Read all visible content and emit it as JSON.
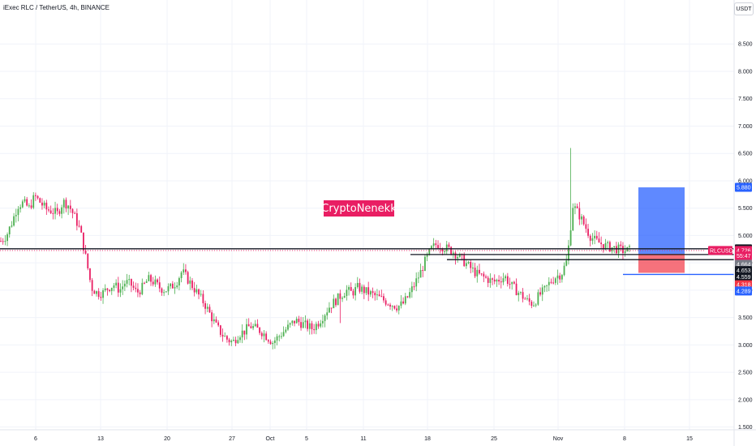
{
  "header": {
    "symbol_title": "iExec RLC / TetherUS, 4h, BINANCE",
    "currency_button": "USDT"
  },
  "watermark": {
    "text": "CryptoNenekk",
    "color": "#e91e63"
  },
  "colors": {
    "up": "#26a69a",
    "up_bright": "#4caf50",
    "down": "#ef5350",
    "down_pink": "#e91e63",
    "grid": "#f0f3fa",
    "axis_text": "#131722",
    "target_zone": "#2962ff",
    "stop_zone": "#f23645",
    "blue_line": "#2962ff"
  },
  "chart_data": {
    "type": "candlestick",
    "symbol": "RLCUSDT",
    "timeframe": "4h",
    "exchange": "BINANCE",
    "price_axis": {
      "ylim": [
        1.45,
        8.8
      ],
      "ticks": [
        "8.500",
        "8.000",
        "7.500",
        "7.000",
        "6.500",
        "6.000",
        "5.500",
        "5.000",
        "4.500",
        "4.000",
        "3.500",
        "3.000",
        "2.500",
        "2.000",
        "1.500"
      ]
    },
    "time_axis": {
      "labels": [
        "6",
        "13",
        "20",
        "27",
        "Oct",
        "5",
        "11",
        "18",
        "25",
        "Nov",
        "8",
        "15"
      ]
    },
    "grid": true,
    "price_series_close": [
      [
        0,
        4.9
      ],
      [
        1,
        5.0
      ],
      [
        2,
        5.25
      ],
      [
        3,
        5.55
      ],
      [
        4,
        5.6
      ],
      [
        5,
        5.5
      ],
      [
        6,
        5.72
      ],
      [
        7,
        5.6
      ],
      [
        8,
        5.48
      ],
      [
        9,
        5.45
      ],
      [
        10,
        5.4
      ],
      [
        11,
        5.62
      ],
      [
        12,
        5.55
      ],
      [
        13,
        5.35
      ],
      [
        14,
        5.1
      ],
      [
        15,
        4.6
      ],
      [
        16,
        4.05
      ],
      [
        17,
        3.95
      ],
      [
        18,
        3.95
      ],
      [
        19,
        4.05
      ],
      [
        20,
        4.1
      ],
      [
        21,
        4.0
      ],
      [
        22,
        4.15
      ],
      [
        23,
        4.1
      ],
      [
        24,
        3.95
      ],
      [
        25,
        4.05
      ],
      [
        26,
        4.2
      ],
      [
        27,
        4.15
      ],
      [
        28,
        4.05
      ],
      [
        29,
        4.0
      ],
      [
        30,
        4.05
      ],
      [
        31,
        4.15
      ],
      [
        32,
        4.35
      ],
      [
        33,
        4.2
      ],
      [
        34,
        4.05
      ],
      [
        35,
        3.9
      ],
      [
        36,
        3.75
      ],
      [
        37,
        3.55
      ],
      [
        38,
        3.35
      ],
      [
        39,
        3.2
      ],
      [
        40,
        3.1
      ],
      [
        41,
        3.05
      ],
      [
        42,
        3.2
      ],
      [
        43,
        3.25
      ],
      [
        44,
        3.35
      ],
      [
        45,
        3.3
      ],
      [
        46,
        3.25
      ],
      [
        47,
        3.15
      ],
      [
        48,
        3.05
      ],
      [
        49,
        3.15
      ],
      [
        50,
        3.25
      ],
      [
        51,
        3.35
      ],
      [
        52,
        3.45
      ],
      [
        53,
        3.4
      ],
      [
        54,
        3.35
      ],
      [
        55,
        3.3
      ],
      [
        56,
        3.4
      ],
      [
        57,
        3.55
      ],
      [
        58,
        3.7
      ],
      [
        59,
        3.8
      ],
      [
        60,
        3.9
      ],
      [
        61,
        4.0
      ],
      [
        62,
        3.95
      ],
      [
        63,
        4.05
      ],
      [
        64,
        4.0
      ],
      [
        65,
        3.95
      ],
      [
        66,
        3.9
      ],
      [
        67,
        3.85
      ],
      [
        68,
        3.8
      ],
      [
        69,
        3.75
      ],
      [
        70,
        3.7
      ],
      [
        71,
        3.75
      ],
      [
        72,
        3.9
      ],
      [
        73,
        4.1
      ],
      [
        74,
        4.3
      ],
      [
        75,
        4.55
      ],
      [
        76,
        4.75
      ],
      [
        77,
        4.85
      ],
      [
        78,
        4.8
      ],
      [
        79,
        4.75
      ],
      [
        80,
        4.7
      ],
      [
        81,
        4.6
      ],
      [
        82,
        4.5
      ],
      [
        83,
        4.4
      ],
      [
        84,
        4.3
      ],
      [
        85,
        4.25
      ],
      [
        86,
        4.2
      ],
      [
        87,
        4.15
      ],
      [
        88,
        4.2
      ],
      [
        89,
        4.25
      ],
      [
        90,
        4.1
      ],
      [
        91,
        4.0
      ],
      [
        92,
        3.9
      ],
      [
        93,
        3.8
      ],
      [
        94,
        3.75
      ],
      [
        95,
        3.9
      ],
      [
        96,
        4.0
      ],
      [
        97,
        4.15
      ],
      [
        98,
        4.25
      ],
      [
        99,
        4.3
      ],
      [
        100,
        4.55
      ],
      [
        101,
        5.55
      ],
      [
        102,
        5.4
      ],
      [
        103,
        5.2
      ],
      [
        104,
        5.0
      ],
      [
        105,
        4.9
      ],
      [
        106,
        4.85
      ],
      [
        107,
        4.8
      ],
      [
        108,
        4.78
      ],
      [
        109,
        4.75
      ],
      [
        110,
        4.72
      ],
      [
        111,
        4.73
      ]
    ],
    "current_price": 4.726,
    "horizontal_lines": [
      {
        "price": 4.757,
        "color": "#131722"
      },
      {
        "price": 4.653,
        "color": "#131722"
      },
      {
        "price": 4.559,
        "color": "#131722"
      },
      {
        "price": 4.289,
        "color": "#2962ff"
      }
    ],
    "position": {
      "target": 5.88,
      "entry": 4.664,
      "stop": 4.318
    },
    "price_labels": [
      {
        "text": "5.880",
        "price": 5.88,
        "bg": "#2962ff",
        "fg": "#ffffff"
      },
      {
        "text": "4.757",
        "price": 4.757,
        "bg": "#131722",
        "fg": "#ffffff"
      },
      {
        "text": "4.726",
        "price": 4.726,
        "bg": "#e91e63",
        "fg": "#ffffff"
      },
      {
        "text": "55:47",
        "price": 4.625,
        "bg": "#e91e63",
        "fg": "#ffffff"
      },
      {
        "text": "4.664",
        "price": 4.475,
        "bg": "#787b86",
        "fg": "#ffffff"
      },
      {
        "text": "4.653",
        "price": 4.36,
        "bg": "#131722",
        "fg": "#ffffff"
      },
      {
        "text": "4.559",
        "price": 4.245,
        "bg": "#131722",
        "fg": "#ffffff"
      },
      {
        "text": "4.318",
        "price": 4.1,
        "bg": "#f23645",
        "fg": "#ffffff"
      },
      {
        "text": "4.289",
        "price": 3.985,
        "bg": "#2962ff",
        "fg": "#ffffff"
      }
    ],
    "symbol_tag": "RLCUSDT"
  }
}
